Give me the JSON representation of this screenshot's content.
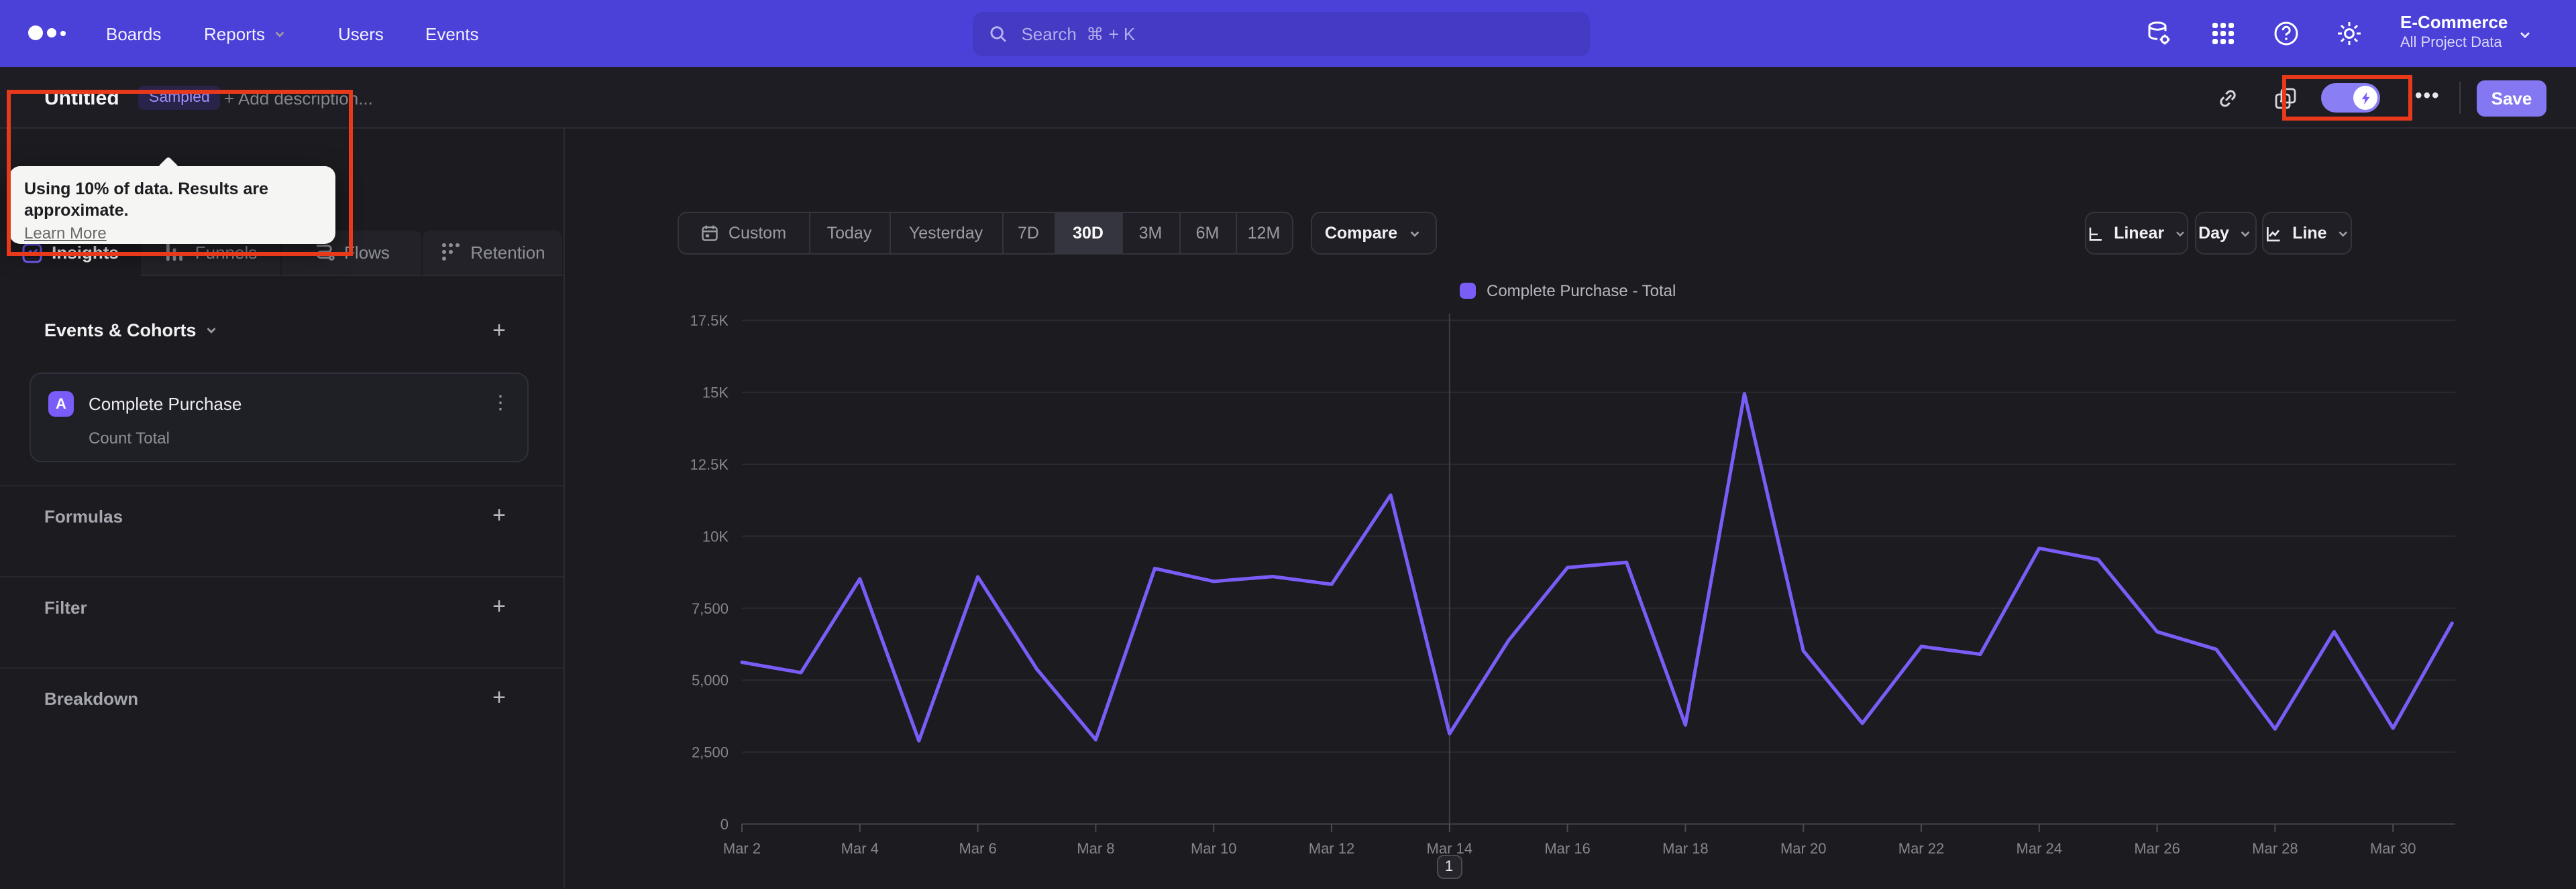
{
  "nav": {
    "items": [
      {
        "label": "Boards"
      },
      {
        "label": "Reports"
      },
      {
        "label": "Users"
      },
      {
        "label": "Events"
      }
    ],
    "search": {
      "placeholder": "Search  ⌘ + K"
    },
    "project": {
      "name": "E-Commerce",
      "scope": "All Project Data"
    }
  },
  "header": {
    "title": "Untitled",
    "badge": "Sampled",
    "add_description": "+ Add description...",
    "save_label": "Save",
    "menu_dots": "•••",
    "tooltip": {
      "line1": "Using 10% of data. Results are approximate.",
      "link": "Learn More"
    }
  },
  "tabs": [
    {
      "label": "Insights"
    },
    {
      "label": "Funnels"
    },
    {
      "label": "Flows"
    },
    {
      "label": "Retention"
    }
  ],
  "sidebar": {
    "events_header": "Events & Cohorts",
    "add_icon": "+",
    "kebab_icon": "⋮",
    "event_card": {
      "letter": "A",
      "name": "Complete Purchase",
      "metric": "Count Total"
    },
    "sections": [
      "Formulas",
      "Filter",
      "Breakdown"
    ]
  },
  "controls": {
    "ranges": [
      "Custom",
      "Today",
      "Yesterday",
      "7D",
      "30D",
      "3M",
      "6M",
      "12M"
    ],
    "active_range": "30D",
    "compare": "Compare",
    "scale": "Linear",
    "granularity": "Day",
    "chart_type": "Line"
  },
  "chart_data": {
    "type": "line",
    "legend": "Complete Purchase - Total",
    "line_color": "#7a5cf6",
    "x": [
      "Mar 2",
      "Mar 3",
      "Mar 4",
      "Mar 5",
      "Mar 6",
      "Mar 7",
      "Mar 8",
      "Mar 9",
      "Mar 10",
      "Mar 11",
      "Mar 12",
      "Mar 13",
      "Mar 14",
      "Mar 15",
      "Mar 16",
      "Mar 17",
      "Mar 18",
      "Mar 19",
      "Mar 20",
      "Mar 21",
      "Mar 22",
      "Mar 23",
      "Mar 24",
      "Mar 25",
      "Mar 26",
      "Mar 27",
      "Mar 28",
      "Mar 29",
      "Mar 30",
      "Mar 31"
    ],
    "values": [
      5620,
      5260,
      8520,
      2890,
      8590,
      5380,
      2930,
      8880,
      8430,
      8600,
      8330,
      11430,
      3140,
      6380,
      8910,
      9090,
      3440,
      14950,
      6020,
      3500,
      6170,
      5900,
      9580,
      9190,
      6680,
      6070,
      3300,
      6680,
      3330,
      6980
    ],
    "x_tick_every": 2,
    "y_ticks": [
      0,
      2500,
      5000,
      7500,
      10000,
      12500,
      15000,
      17500
    ],
    "y_tick_labels": [
      "0",
      "2,500",
      "5,000",
      "7,500",
      "10K",
      "12.5K",
      "15K",
      "17.5K"
    ],
    "ylim": [
      0,
      17900
    ],
    "grid": true,
    "legend_position": "top",
    "marker_x": "Mar 14",
    "pagination": "1"
  }
}
